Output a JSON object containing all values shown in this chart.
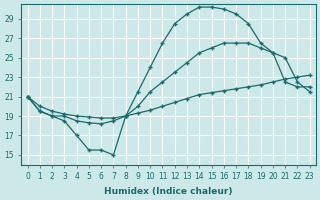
{
  "xlabel": "Humidex (Indice chaleur)",
  "bg_color": "#cce8e8",
  "grid_color": "#ffffff",
  "line_color": "#1a6b6b",
  "xlim": [
    -0.5,
    23.5
  ],
  "ylim": [
    14,
    30.5
  ],
  "yticks": [
    15,
    17,
    19,
    21,
    23,
    25,
    27,
    29
  ],
  "xticks": [
    0,
    1,
    2,
    3,
    4,
    5,
    6,
    7,
    8,
    9,
    10,
    11,
    12,
    13,
    14,
    15,
    16,
    17,
    18,
    19,
    20,
    21,
    22,
    23
  ],
  "line_top_x": [
    0,
    1,
    2,
    3,
    4,
    5,
    6,
    7,
    8,
    9,
    10,
    11,
    12,
    13,
    14,
    15,
    16,
    17,
    18,
    19,
    20,
    21,
    22,
    23
  ],
  "line_top_y": [
    21.0,
    19.5,
    19.0,
    18.5,
    17.0,
    15.5,
    15.5,
    15.0,
    19.0,
    21.5,
    24.0,
    26.5,
    28.5,
    29.5,
    30.2,
    30.2,
    30.0,
    29.5,
    28.5,
    26.5,
    25.5,
    25.0,
    22.5,
    21.5
  ],
  "line_mid_x": [
    0,
    1,
    2,
    3,
    4,
    5,
    6,
    7,
    8,
    9,
    10,
    11,
    12,
    13,
    14,
    15,
    16,
    17,
    18,
    19,
    20,
    21,
    22,
    23
  ],
  "line_mid_y": [
    21.0,
    19.5,
    19.0,
    19.0,
    18.5,
    18.3,
    18.2,
    18.5,
    19.0,
    20.0,
    21.5,
    22.5,
    23.5,
    24.5,
    25.5,
    26.0,
    26.5,
    26.5,
    26.5,
    26.0,
    25.5,
    22.5,
    22.0,
    22.0
  ],
  "line_bot_x": [
    0,
    1,
    2,
    3,
    4,
    5,
    6,
    7,
    8,
    9,
    10,
    11,
    12,
    13,
    14,
    15,
    16,
    17,
    18,
    19,
    20,
    21,
    22,
    23
  ],
  "line_bot_y": [
    21.0,
    20.0,
    19.5,
    19.2,
    19.0,
    18.9,
    18.8,
    18.8,
    19.0,
    19.3,
    19.6,
    20.0,
    20.4,
    20.8,
    21.2,
    21.4,
    21.6,
    21.8,
    22.0,
    22.2,
    22.5,
    22.8,
    23.0,
    23.2
  ]
}
